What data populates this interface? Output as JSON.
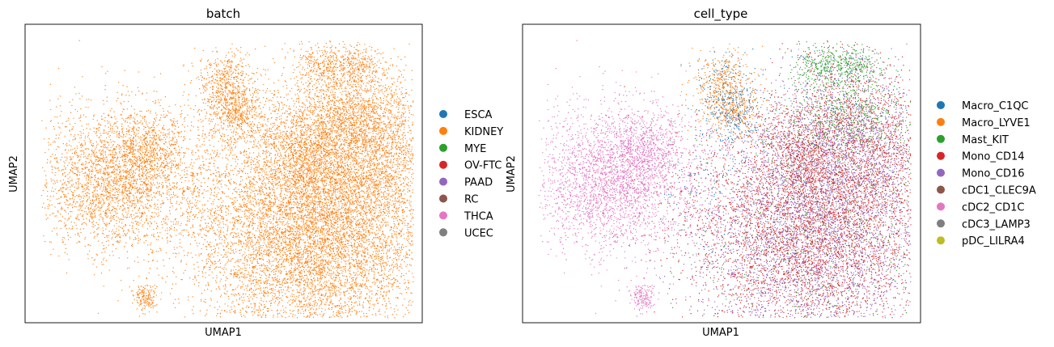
{
  "chart_data": [
    {
      "type": "scatter",
      "title": "batch",
      "xlabel": "UMAP1",
      "ylabel": "UMAP2",
      "grid": false,
      "ticks": false,
      "legend_position": "right",
      "xlim": [
        -6,
        12
      ],
      "ylim": [
        -4,
        10
      ],
      "series": [
        {
          "name": "ESCA",
          "color": "#1f77b4",
          "points": []
        },
        {
          "name": "KIDNEY",
          "color": "#ff7f0e",
          "points": "cloud"
        },
        {
          "name": "MYE",
          "color": "#2ca02c",
          "points": []
        },
        {
          "name": "OV-FTC",
          "color": "#d62728",
          "points": []
        },
        {
          "name": "PAAD",
          "color": "#9467bd",
          "points": []
        },
        {
          "name": "RC",
          "color": "#8c564b",
          "points": []
        },
        {
          "name": "THCA",
          "color": "#e377c2",
          "points": []
        },
        {
          "name": "UCEC",
          "color": "#7f7f7f",
          "points": []
        }
      ]
    },
    {
      "type": "scatter",
      "title": "cell_type",
      "xlabel": "UMAP1",
      "ylabel": "UMAP2",
      "grid": false,
      "ticks": false,
      "legend_position": "right",
      "xlim": [
        -6,
        12
      ],
      "ylim": [
        -4,
        10
      ],
      "series": [
        {
          "name": "Macro_C1QC",
          "color": "#1f77b4"
        },
        {
          "name": "Macro_LYVE1",
          "color": "#ff7f0e"
        },
        {
          "name": "Mast_KIT",
          "color": "#2ca02c"
        },
        {
          "name": "Mono_CD14",
          "color": "#d62728"
        },
        {
          "name": "Mono_CD16",
          "color": "#9467bd"
        },
        {
          "name": "cDC1_CLEC9A",
          "color": "#8c564b"
        },
        {
          "name": "cDC2_CD1C",
          "color": "#e377c2"
        },
        {
          "name": "cDC3_LAMP3",
          "color": "#7f7f7f"
        },
        {
          "name": "pDC_LILRA4",
          "color": "#bcbd22"
        }
      ],
      "clusters": [
        {
          "region": "large-right",
          "cell_types": [
            "Mono_CD14",
            "Mono_CD16"
          ],
          "center": [
            6.4,
            2.4
          ]
        },
        {
          "region": "left",
          "cell_types": [
            "cDC2_CD1C"
          ],
          "center": [
            -3.3,
            4.3
          ]
        },
        {
          "region": "top-center",
          "cell_types": [
            "Macro_LYVE1",
            "Macro_C1QC"
          ],
          "center": [
            2.3,
            8.2
          ]
        },
        {
          "region": "top-right",
          "cell_types": [
            "Mast_KIT"
          ],
          "center": [
            7.9,
            7.3
          ]
        },
        {
          "region": "small-bottom",
          "cell_types": [
            "cDC2_CD1C"
          ],
          "center": [
            -1.1,
            -2.3
          ]
        }
      ]
    }
  ]
}
